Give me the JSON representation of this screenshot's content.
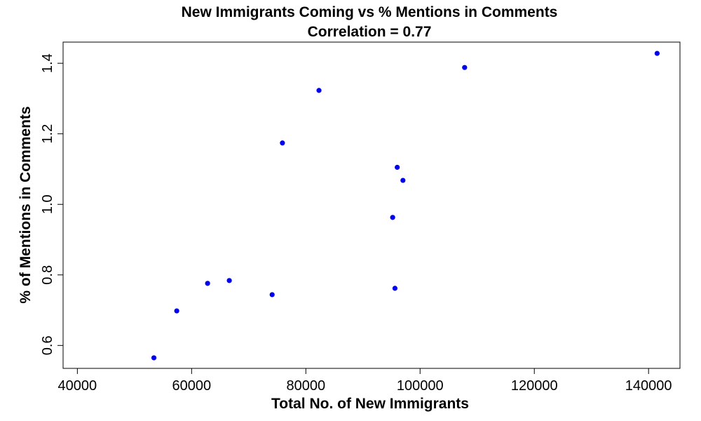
{
  "chart_data": {
    "type": "scatter",
    "title": "New Immigrants Coming vs % Mentions in Comments",
    "subtitle": "Correlation =  0.77",
    "xlabel": "Total No. of New Immigrants",
    "ylabel": "% of Mentions in Comments",
    "xlim": [
      37500,
      145500
    ],
    "ylim": [
      0.535,
      1.46
    ],
    "x_ticks": [
      40000,
      60000,
      80000,
      100000,
      120000,
      140000
    ],
    "y_ticks": [
      0.6,
      0.8,
      1.0,
      1.2,
      1.4
    ],
    "point_color": "#0000ee",
    "series": [
      {
        "name": "observations",
        "points": [
          {
            "x": 53400,
            "y": 0.565
          },
          {
            "x": 57400,
            "y": 0.698
          },
          {
            "x": 62800,
            "y": 0.776
          },
          {
            "x": 66600,
            "y": 0.784
          },
          {
            "x": 74100,
            "y": 0.744
          },
          {
            "x": 75900,
            "y": 1.174
          },
          {
            "x": 82300,
            "y": 1.323
          },
          {
            "x": 95200,
            "y": 0.963
          },
          {
            "x": 95600,
            "y": 0.762
          },
          {
            "x": 96000,
            "y": 1.105
          },
          {
            "x": 97000,
            "y": 1.068
          },
          {
            "x": 107800,
            "y": 1.388
          },
          {
            "x": 141500,
            "y": 1.428
          }
        ]
      }
    ]
  }
}
